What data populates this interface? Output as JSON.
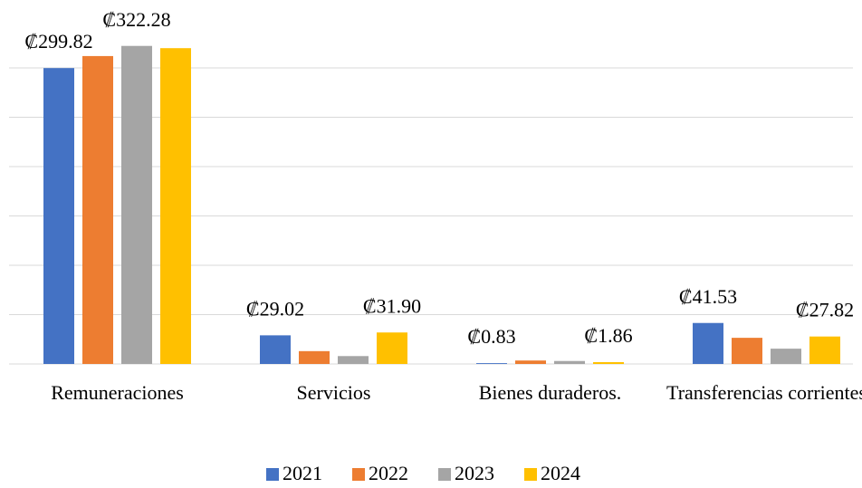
{
  "chart_data": {
    "type": "bar",
    "categories": [
      "Remuneraciones",
      "Servicios",
      "Bienes duraderos.",
      "Transferencias corrientes"
    ],
    "series": [
      {
        "name": "2021",
        "color": "#4472c4",
        "values": [
          299.82,
          29.02,
          0.83,
          41.53
        ],
        "value_labels": [
          "₡299.82",
          "₡29.02",
          "₡0.83",
          "₡41.53"
        ]
      },
      {
        "name": "2022",
        "color": "#ed7d31",
        "values": [
          312,
          13,
          3.5,
          26.5
        ],
        "value_labels": [
          null,
          null,
          null,
          null
        ]
      },
      {
        "name": "2023",
        "color": "#a5a5a5",
        "values": [
          322.28,
          8,
          3,
          15.5
        ],
        "value_labels": [
          "₡322.28",
          null,
          null,
          null
        ]
      },
      {
        "name": "2024",
        "color": "#ffc000",
        "values": [
          320,
          31.9,
          1.86,
          27.82
        ],
        "value_labels": [
          null,
          "₡31.90",
          "₡1.86",
          "₡27.82"
        ]
      }
    ],
    "ylim": [
      0,
      350
    ],
    "yticks": [
      0,
      50,
      100,
      150,
      200,
      250,
      300
    ],
    "grid": true,
    "legend": "bottom"
  }
}
